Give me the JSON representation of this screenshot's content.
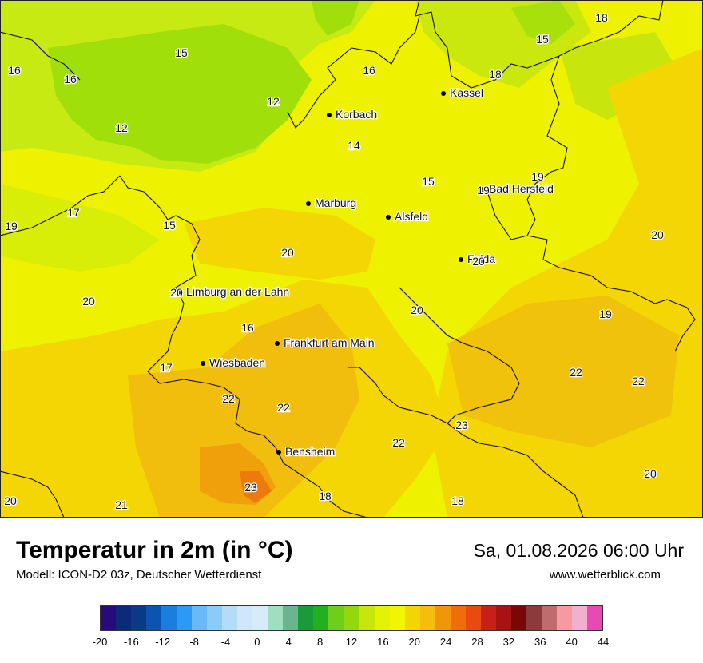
{
  "map": {
    "cities": [
      {
        "name": "Kassel"
      },
      {
        "name": "Korbach"
      },
      {
        "name": "Marburg"
      },
      {
        "name": "Alsfeld"
      },
      {
        "name": "Bad Hersfeld"
      },
      {
        "name": "Fulda"
      },
      {
        "name": "Limburg an der Lahn"
      },
      {
        "name": "Frankfurt am Main"
      },
      {
        "name": "Wiesbaden"
      },
      {
        "name": "Bensheim"
      }
    ],
    "temperature_labels": [
      "18",
      "15",
      "16",
      "16",
      "15",
      "12",
      "12",
      "16",
      "18",
      "14",
      "15",
      "19",
      "19",
      "17",
      "15",
      "19",
      "20",
      "20",
      "20",
      "20",
      "20",
      "16",
      "17",
      "19",
      "22",
      "22",
      "22",
      "23",
      "22",
      "22",
      "20",
      "23",
      "18",
      "18",
      "20",
      "21",
      "20"
    ]
  },
  "legend": {
    "title": "Temperatur in 2m (in °C)",
    "model": "Modell: ICON-D2 03z, Deutscher Wetterdienst",
    "datetime": "Sa, 01.08.2026 06:00 Uhr",
    "site": "www.wetterblick.com",
    "tick_labels": [
      "-20",
      "-16",
      "-12",
      "-8",
      "-4",
      "0",
      "4",
      "8",
      "12",
      "16",
      "20",
      "24",
      "28",
      "32",
      "36",
      "40",
      "44"
    ],
    "colors": [
      "#2a0a7a",
      "#0b2a7a",
      "#0a3a86",
      "#0a55b0",
      "#1a7ee0",
      "#2b9af5",
      "#69b8f8",
      "#8ccaf8",
      "#b4dcf9",
      "#cfe6fb",
      "#d7ecf9",
      "#9edfc0",
      "#6bb58e",
      "#1a9a3a",
      "#20b020",
      "#6ccf1a",
      "#93d80c",
      "#c8e60e",
      "#e4f204",
      "#f2f500",
      "#f5d404",
      "#f3be0e",
      "#f1950c",
      "#ef6e0a",
      "#e84a10",
      "#c82018",
      "#a81214",
      "#7a0606",
      "#8c3a3a",
      "#c06c6c",
      "#f49aa0",
      "#f2b0d0",
      "#e84ab4"
    ]
  }
}
